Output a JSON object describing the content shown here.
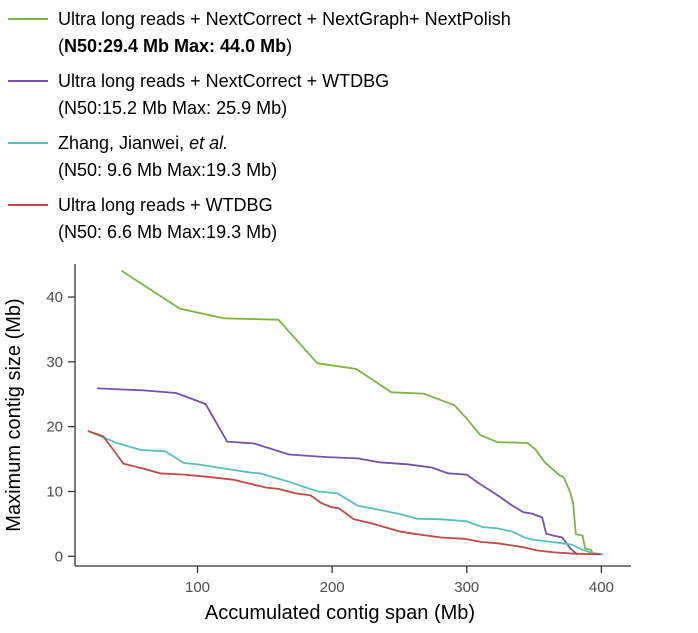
{
  "legend": {
    "entries": [
      {
        "color": "#7CB342",
        "label": "Ultra long reads + NextCorrect + NextGraph+ NextPolish",
        "stats_open": "(",
        "stats_bold": "N50:29.4 Mb Max: 44.0 Mb",
        "stats_close": ")"
      },
      {
        "color": "#7551AD",
        "label": "Ultra long reads + NextCorrect + WTDBG",
        "stats": "(N50:15.2 Mb Max: 25.9 Mb)"
      },
      {
        "color": "#5ABFBB",
        "label_prefix": "Zhang, Jianwei, ",
        "label_italic": "et al.",
        "stats": "(N50: 9.6 Mb Max:19.3 Mb)"
      },
      {
        "color": "#BC4A45",
        "label": "Ultra long reads + WTDBG",
        "stats": "(N50: 6.6 Mb Max:19.3 Mb)"
      }
    ]
  },
  "chart_data": {
    "type": "line",
    "title": "",
    "xlabel": "Accumulated contig span (Mb)",
    "ylabel": "Maximum contig size (Mb)",
    "xlim": [
      9,
      422
    ],
    "ylim": [
      -1.5,
      45.1
    ],
    "x_ticks": [
      100,
      200,
      300,
      400
    ],
    "y_ticks": [
      0,
      10,
      20,
      30,
      40
    ],
    "grid": false,
    "legend_position": "top-left",
    "axis_color": "#333333",
    "tick_label_color": "#4d4d4d",
    "series": [
      {
        "name": "Ultra long reads + NextCorrect + NextGraph+ NextPolish",
        "n50_mb": 29.4,
        "max_mb": 44.0,
        "color": "#7CB342",
        "points": [
          [
            44,
            44
          ],
          [
            87,
            38.2
          ],
          [
            120,
            36.7
          ],
          [
            160,
            36.5
          ],
          [
            189,
            29.8
          ],
          [
            218,
            28.9
          ],
          [
            244,
            25.3
          ],
          [
            268,
            25.1
          ],
          [
            291,
            23.3
          ],
          [
            301,
            21
          ],
          [
            310,
            18.7
          ],
          [
            323,
            17.6
          ],
          [
            345,
            17.5
          ],
          [
            351,
            16.5
          ],
          [
            358,
            14.5
          ],
          [
            369,
            12.5
          ],
          [
            372,
            12.2
          ],
          [
            377,
            9.8
          ],
          [
            379,
            8.2
          ],
          [
            381,
            3.4
          ],
          [
            386,
            3.2
          ],
          [
            388,
            1.2
          ],
          [
            392,
            1
          ],
          [
            394,
            0.4
          ]
        ]
      },
      {
        "name": "Ultra long reads + NextCorrect + WTDBG",
        "n50_mb": 15.2,
        "max_mb": 25.9,
        "color": "#7551AD",
        "points": [
          [
            26,
            25.9
          ],
          [
            60,
            25.6
          ],
          [
            84,
            25.2
          ],
          [
            106,
            23.5
          ],
          [
            122,
            17.7
          ],
          [
            142,
            17.4
          ],
          [
            168,
            15.7
          ],
          [
            196,
            15.3
          ],
          [
            219,
            15.1
          ],
          [
            235,
            14.5
          ],
          [
            256,
            14.2
          ],
          [
            274,
            13.7
          ],
          [
            286,
            12.8
          ],
          [
            300,
            12.6
          ],
          [
            308,
            11.4
          ],
          [
            323,
            9.4
          ],
          [
            334,
            7.8
          ],
          [
            342,
            6.8
          ],
          [
            348,
            6.6
          ],
          [
            356,
            6
          ],
          [
            359,
            3.5
          ],
          [
            364,
            3.2
          ],
          [
            371,
            2.9
          ],
          [
            377,
            1.2
          ],
          [
            382,
            0.3
          ]
        ]
      },
      {
        "name": "Zhang, Jianwei, et al.",
        "n50_mb": 9.6,
        "max_mb": 19.3,
        "color": "#5ABFBB",
        "points": [
          [
            19,
            19.3
          ],
          [
            40,
            17.5
          ],
          [
            58,
            16.4
          ],
          [
            76,
            16.2
          ],
          [
            90,
            14.4
          ],
          [
            100,
            14.2
          ],
          [
            115,
            13.7
          ],
          [
            140,
            12.9
          ],
          [
            146,
            12.8
          ],
          [
            168,
            11.5
          ],
          [
            182,
            10.5
          ],
          [
            190,
            10
          ],
          [
            204,
            9.7
          ],
          [
            219,
            7.8
          ],
          [
            229,
            7.4
          ],
          [
            251,
            6.5
          ],
          [
            263,
            5.8
          ],
          [
            281,
            5.7
          ],
          [
            300,
            5.4
          ],
          [
            306,
            4.9
          ],
          [
            312,
            4.5
          ],
          [
            323,
            4.3
          ],
          [
            334,
            3.8
          ],
          [
            343,
            2.9
          ],
          [
            348,
            2.6
          ],
          [
            363,
            2.2
          ],
          [
            371,
            2
          ],
          [
            378,
            1.8
          ],
          [
            385,
            1.1
          ],
          [
            393,
            0.5
          ],
          [
            401,
            0.3
          ]
        ]
      },
      {
        "name": "Ultra long reads + WTDBG",
        "n50_mb": 6.6,
        "max_mb": 19.3,
        "color": "#BC4A45",
        "points": [
          [
            19,
            19.3
          ],
          [
            30,
            18.5
          ],
          [
            45,
            14.3
          ],
          [
            60,
            13.5
          ],
          [
            72,
            12.8
          ],
          [
            90,
            12.6
          ],
          [
            110,
            12.2
          ],
          [
            127,
            11.8
          ],
          [
            139,
            11.2
          ],
          [
            151,
            10.6
          ],
          [
            160,
            10.4
          ],
          [
            173,
            9.7
          ],
          [
            184,
            9.4
          ],
          [
            192,
            8.2
          ],
          [
            199,
            7.6
          ],
          [
            205,
            7.4
          ],
          [
            213,
            6.2
          ],
          [
            216,
            5.7
          ],
          [
            229,
            5.1
          ],
          [
            239,
            4.5
          ],
          [
            251,
            3.8
          ],
          [
            263,
            3.4
          ],
          [
            281,
            2.9
          ],
          [
            298,
            2.7
          ],
          [
            311,
            2.2
          ],
          [
            323,
            2
          ],
          [
            342,
            1.4
          ],
          [
            352,
            0.9
          ],
          [
            365,
            0.6
          ],
          [
            380,
            0.4
          ],
          [
            399,
            0.3
          ]
        ]
      }
    ]
  }
}
